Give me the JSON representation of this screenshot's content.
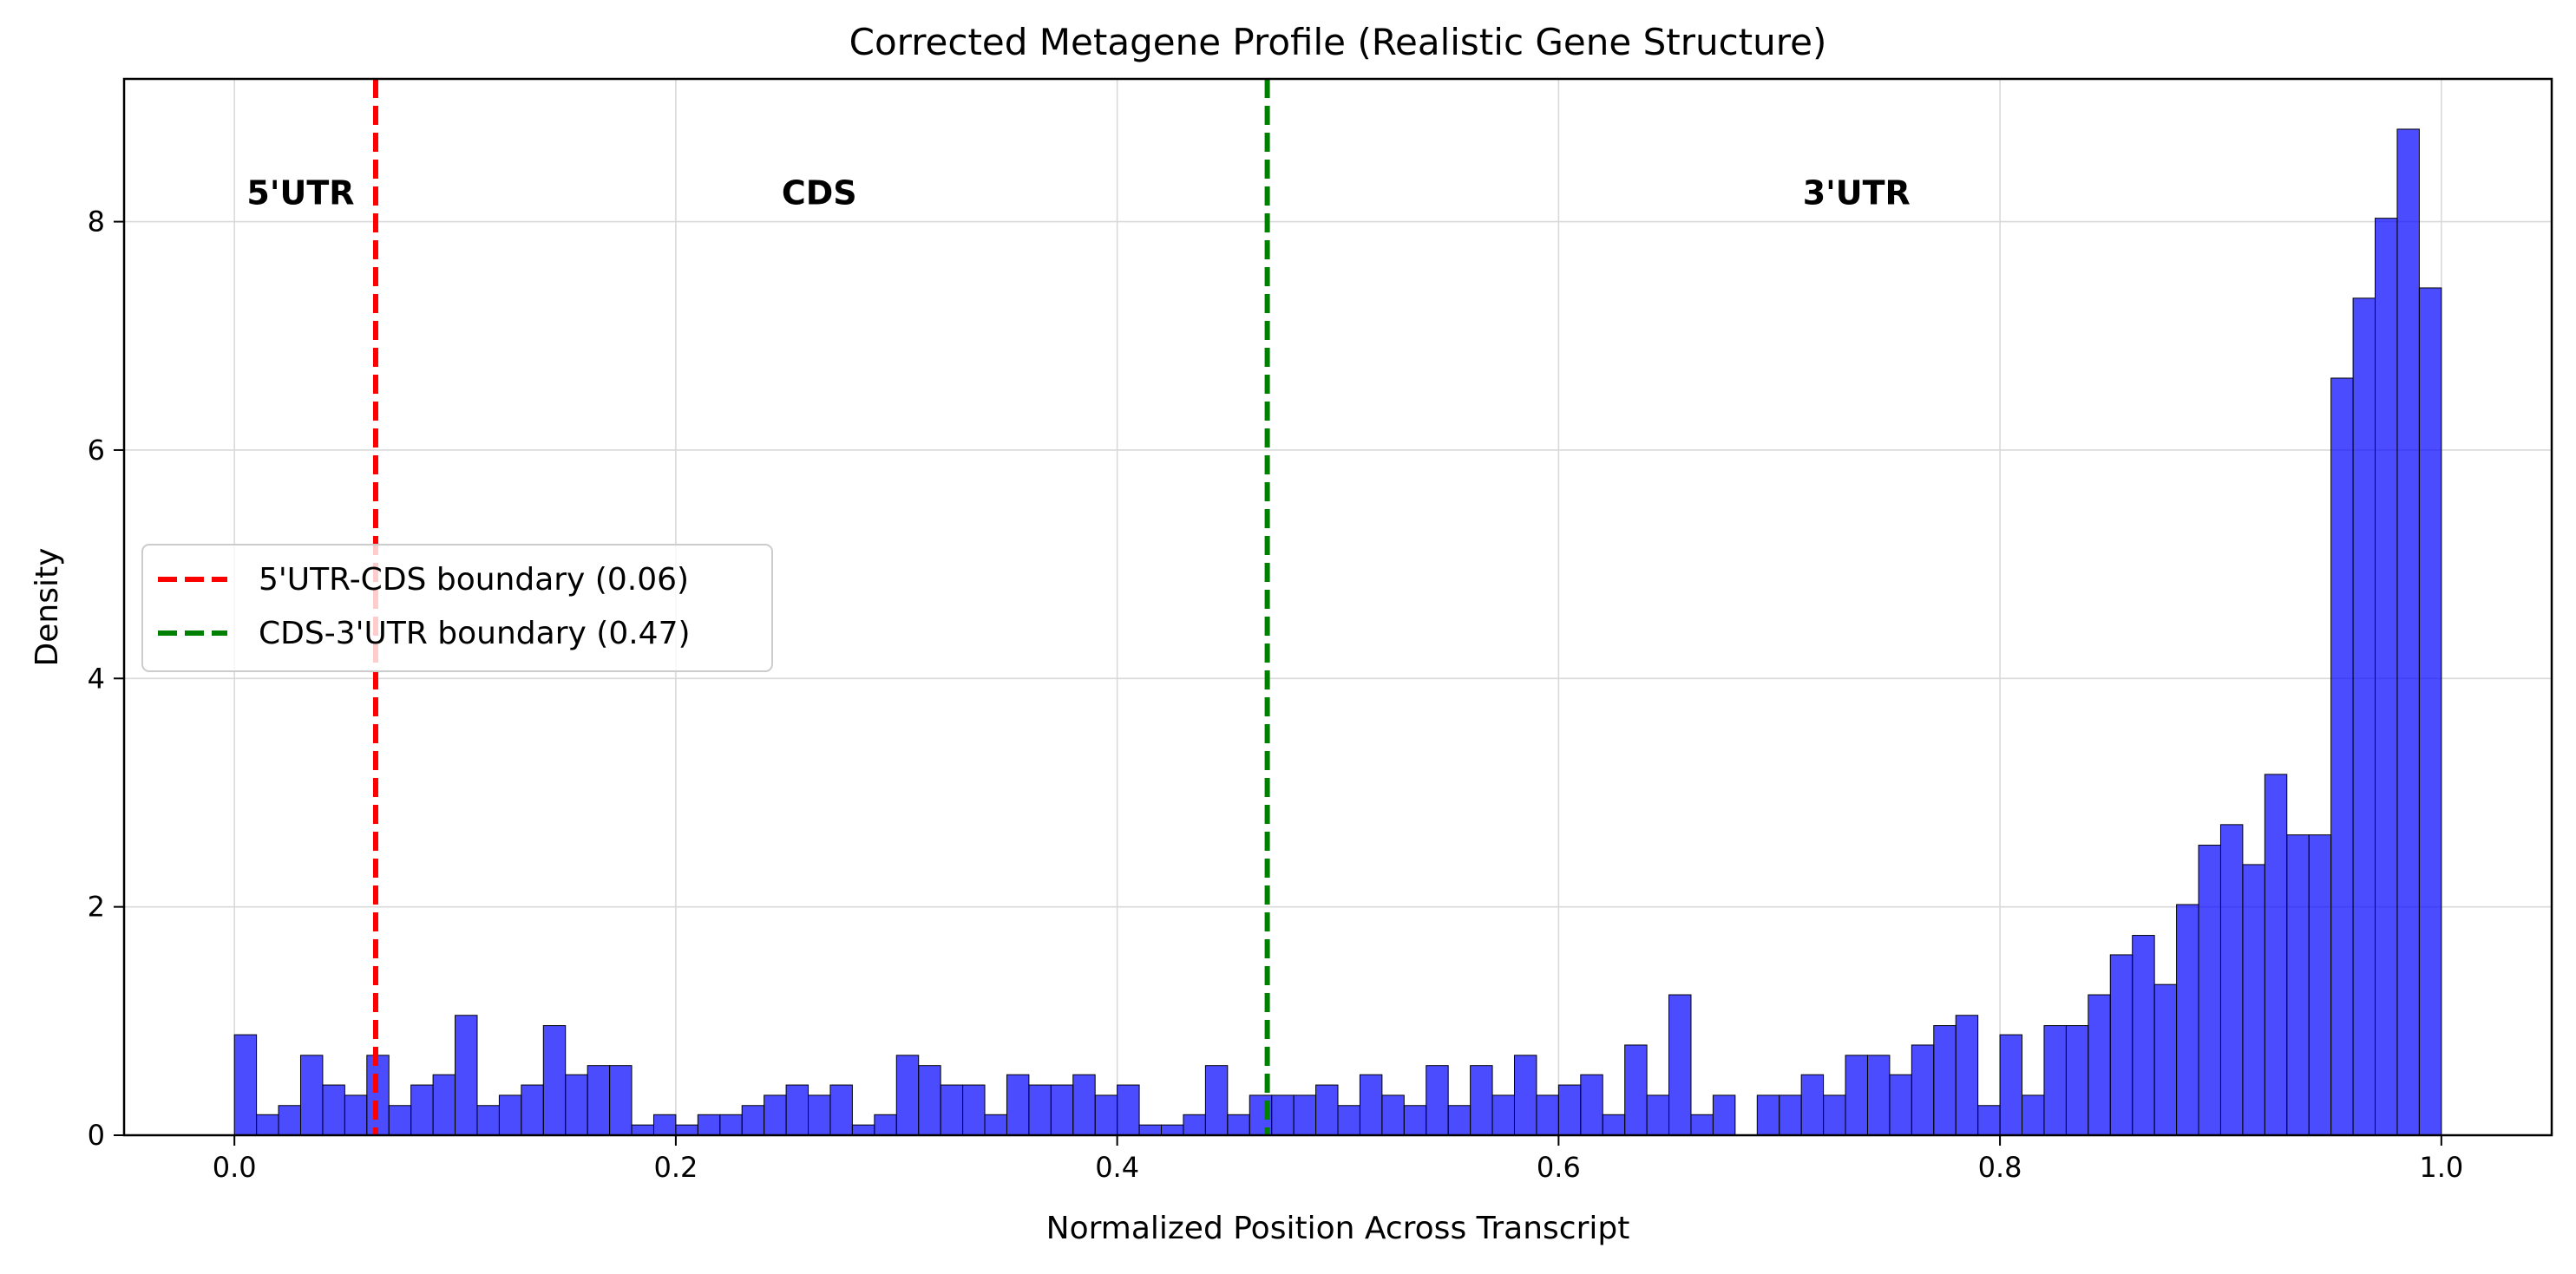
{
  "chart_data": {
    "type": "bar",
    "title": "Corrected Metagene Profile (Realistic Gene Structure)",
    "xlabel": "Normalized Position Across Transcript",
    "ylabel": "Density",
    "xlim": [
      -0.05,
      1.05
    ],
    "ylim": [
      0,
      9.25
    ],
    "xticks": [
      0.0,
      0.2,
      0.4,
      0.6,
      0.8,
      1.0
    ],
    "xtick_labels": [
      "0.0",
      "0.2",
      "0.4",
      "0.6",
      "0.8",
      "1.0"
    ],
    "yticks": [
      0,
      2,
      4,
      6,
      8
    ],
    "ytick_labels": [
      "0",
      "2",
      "4",
      "6",
      "8"
    ],
    "grid": true,
    "bar_color": "#0000ff",
    "bin_width": 0.01,
    "bin_starts": [
      0.0,
      0.01,
      0.02,
      0.03,
      0.04,
      0.05,
      0.06,
      0.07,
      0.08,
      0.09,
      0.1,
      0.11,
      0.12,
      0.13,
      0.14,
      0.15,
      0.16,
      0.17,
      0.18,
      0.19,
      0.2,
      0.21,
      0.22,
      0.23,
      0.24,
      0.25,
      0.26,
      0.27,
      0.28,
      0.29,
      0.3,
      0.31,
      0.32,
      0.33,
      0.34,
      0.35,
      0.36,
      0.37,
      0.38,
      0.39,
      0.4,
      0.41,
      0.42,
      0.43,
      0.44,
      0.45,
      0.46,
      0.47,
      0.48,
      0.49,
      0.5,
      0.51,
      0.52,
      0.53,
      0.54,
      0.55,
      0.56,
      0.57,
      0.58,
      0.59,
      0.6,
      0.61,
      0.62,
      0.63,
      0.64,
      0.65,
      0.66,
      0.67,
      0.68,
      0.69,
      0.7,
      0.71,
      0.72,
      0.73,
      0.74,
      0.75,
      0.76,
      0.77,
      0.78,
      0.79,
      0.8,
      0.81,
      0.82,
      0.83,
      0.84,
      0.85,
      0.86,
      0.87,
      0.88,
      0.89,
      0.9,
      0.91,
      0.92,
      0.93,
      0.94,
      0.95,
      0.96,
      0.97,
      0.98,
      0.99
    ],
    "values": [
      0.88,
      0.18,
      0.26,
      0.7,
      0.44,
      0.35,
      0.7,
      0.26,
      0.44,
      0.53,
      1.05,
      0.26,
      0.35,
      0.44,
      0.96,
      0.53,
      0.61,
      0.61,
      0.09,
      0.18,
      0.09,
      0.18,
      0.18,
      0.26,
      0.35,
      0.44,
      0.35,
      0.44,
      0.09,
      0.18,
      0.7,
      0.61,
      0.44,
      0.44,
      0.18,
      0.53,
      0.44,
      0.44,
      0.53,
      0.35,
      0.44,
      0.09,
      0.09,
      0.18,
      0.61,
      0.18,
      0.35,
      0.35,
      0.35,
      0.44,
      0.26,
      0.53,
      0.35,
      0.26,
      0.61,
      0.26,
      0.61,
      0.35,
      0.7,
      0.35,
      0.44,
      0.53,
      0.18,
      0.79,
      0.35,
      1.23,
      0.18,
      0.35,
      0.0,
      0.35,
      0.35,
      0.53,
      0.35,
      0.7,
      0.7,
      0.53,
      0.79,
      0.96,
      1.05,
      0.26,
      0.88,
      0.35,
      0.96,
      0.96,
      1.23,
      1.58,
      1.75,
      1.32,
      2.02,
      2.54,
      2.72,
      2.37,
      3.16,
      2.63,
      2.63,
      6.63,
      7.33,
      8.03,
      8.81,
      7.42
    ],
    "vlines": [
      {
        "x": 0.064,
        "color": "#ff0000",
        "style": "dashed"
      },
      {
        "x": 0.468,
        "color": "#008000",
        "style": "dashed"
      }
    ],
    "region_labels": [
      {
        "text": "5'UTR",
        "x": 0.03,
        "y": 8.25
      },
      {
        "text": "CDS",
        "x": 0.265,
        "y": 8.25
      },
      {
        "text": "3'UTR",
        "x": 0.735,
        "y": 8.25
      }
    ],
    "legend": {
      "placement": "center-left",
      "entries": [
        {
          "label": "5'UTR-CDS boundary (0.06)",
          "color": "#ff0000",
          "style": "dashed"
        },
        {
          "label": "CDS-3'UTR boundary (0.47)",
          "color": "#008000",
          "style": "dashed"
        }
      ]
    }
  }
}
